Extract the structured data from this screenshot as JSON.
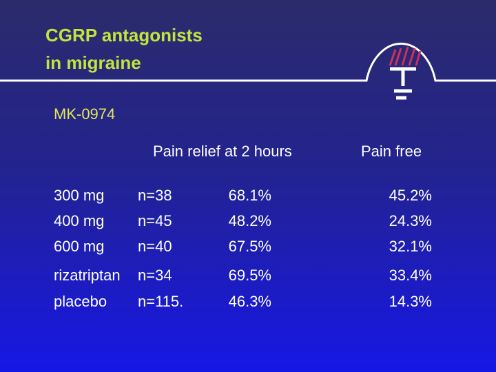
{
  "header": {
    "title_lines": [
      "CGRP antagonists",
      "in migraine"
    ],
    "subtitle": "MK-0974"
  },
  "table": {
    "columns": [
      "Pain relief at 2 hours",
      "Pain free"
    ],
    "rows": [
      [
        "300 mg",
        "n=38",
        "68.1%",
        "45.2%"
      ],
      [
        "400 mg",
        "n=45",
        "48.2%",
        "24.3%"
      ],
      [
        "600 mg",
        "n=40",
        "67.5%",
        "32.1%"
      ],
      [
        "rizatriptan",
        "n=34",
        "69.5%",
        "33.4%"
      ],
      [
        "placebo",
        "n=115.",
        "46.3%",
        "14.3%"
      ]
    ]
  }
}
